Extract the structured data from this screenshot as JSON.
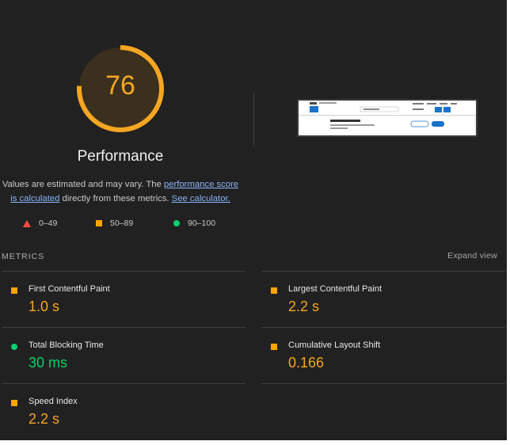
{
  "gauge": {
    "score": "76",
    "fraction": 0.76,
    "title": "Performance",
    "color": "#f5a623"
  },
  "description": {
    "prefix": "Values are estimated and may vary. The ",
    "link1": "performance score is calculated",
    "middle": " directly from these metrics. ",
    "link2": "See calculator."
  },
  "legend": [
    {
      "icon": "triangle",
      "range": "0–49",
      "color": "#ff4e42"
    },
    {
      "icon": "square",
      "range": "50–89",
      "color": "#ffa400"
    },
    {
      "icon": "circle",
      "range": "90–100",
      "color": "#0cce6b"
    }
  ],
  "metrics_section": {
    "title": "METRICS",
    "expand_label": "Expand view"
  },
  "metrics": [
    {
      "label": "First Contentful Paint",
      "value": "1.0 s",
      "status": "average"
    },
    {
      "label": "Largest Contentful Paint",
      "value": "2.2 s",
      "status": "average"
    },
    {
      "label": "Total Blocking Time",
      "value": "30 ms",
      "status": "good"
    },
    {
      "label": "Cumulative Layout Shift",
      "value": "0.166",
      "status": "average"
    },
    {
      "label": "Speed Index",
      "value": "2.2 s",
      "status": "average"
    }
  ]
}
